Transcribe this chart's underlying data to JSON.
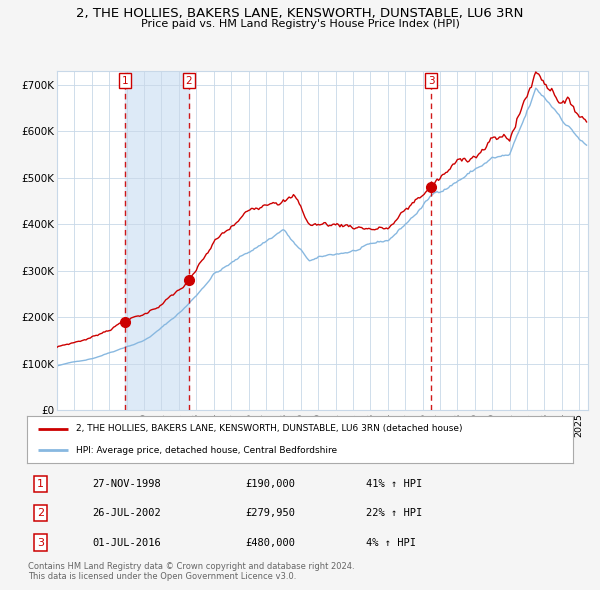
{
  "title": "2, THE HOLLIES, BAKERS LANE, KENSWORTH, DUNSTABLE, LU6 3RN",
  "subtitle": "Price paid vs. HM Land Registry's House Price Index (HPI)",
  "legend_line1": "2, THE HOLLIES, BAKERS LANE, KENSWORTH, DUNSTABLE, LU6 3RN (detached house)",
  "legend_line2": "HPI: Average price, detached house, Central Bedfordshire",
  "transactions": [
    {
      "num": 1,
      "date": "27-NOV-1998",
      "price": 190000,
      "hpi_pct": "41% ↑ HPI",
      "year": 1998.917
    },
    {
      "num": 2,
      "date": "26-JUL-2002",
      "price": 279950,
      "hpi_pct": "22% ↑ HPI",
      "year": 2002.583
    },
    {
      "num": 3,
      "date": "01-JUL-2016",
      "price": 480000,
      "hpi_pct": "4% ↑ HPI",
      "year": 2016.5
    }
  ],
  "footer1": "Contains HM Land Registry data © Crown copyright and database right 2024.",
  "footer2": "This data is licensed under the Open Government Licence v3.0.",
  "bg_color": "#f5f5f5",
  "plot_bg": "#ffffff",
  "red_line_color": "#cc0000",
  "blue_line_color": "#88b8e0",
  "shade_color": "#ddeaf7",
  "grid_color": "#c8d8e8",
  "ylim": [
    0,
    730000
  ],
  "xlim_start": 1995.0,
  "xlim_end": 2025.5,
  "yticks": [
    0,
    100000,
    200000,
    300000,
    400000,
    500000,
    600000,
    700000
  ],
  "ylabels": [
    "£0",
    "£100K",
    "£200K",
    "£300K",
    "£400K",
    "£500K",
    "£600K",
    "£700K"
  ]
}
